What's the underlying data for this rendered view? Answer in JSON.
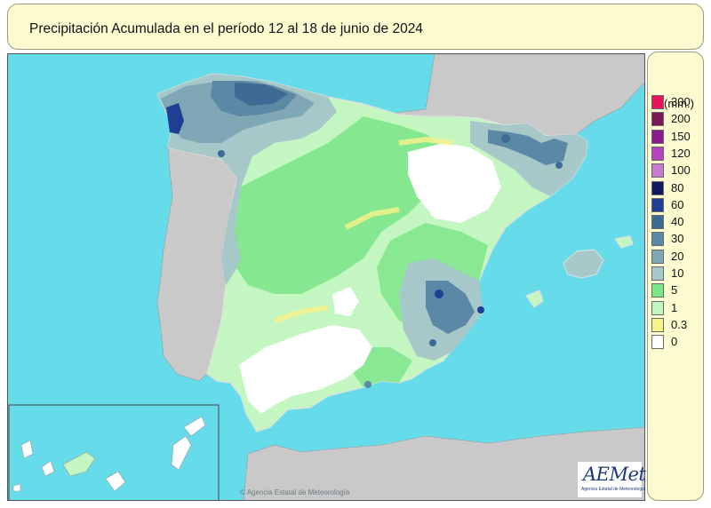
{
  "title": "Precipitación Acumulada en el período 12 al 18 de junio de 2024",
  "legend": {
    "units": "(mm.)",
    "classes": [
      {
        "label": "300",
        "color": "#e8145a"
      },
      {
        "label": "200",
        "color": "#7a1a55"
      },
      {
        "label": "150",
        "color": "#8a1a8f"
      },
      {
        "label": "120",
        "color": "#b244c0"
      },
      {
        "label": "100",
        "color": "#c77ad2"
      },
      {
        "label": "80",
        "color": "#0f1a5f"
      },
      {
        "label": "60",
        "color": "#1e3f94"
      },
      {
        "label": "40",
        "color": "#3e6a93"
      },
      {
        "label": "30",
        "color": "#5b88a4"
      },
      {
        "label": "20",
        "color": "#7fa7b5"
      },
      {
        "label": "10",
        "color": "#a6c8c8"
      },
      {
        "label": "5",
        "color": "#7ee68a"
      },
      {
        "label": "1",
        "color": "#c4f6c2"
      },
      {
        "label": "0.3",
        "color": "#f7f38a"
      },
      {
        "label": "0",
        "color": "#ffffff"
      }
    ]
  },
  "colors": {
    "sea": "#66dcea",
    "land_other": "#c9c9c9",
    "canary_inset_bg": "#66dcea"
  },
  "logo": {
    "name": "AEMet",
    "subtitle": "Agencia Estatal de Meteorología"
  },
  "credit": "© Agencia Estatal de Meteorología"
}
